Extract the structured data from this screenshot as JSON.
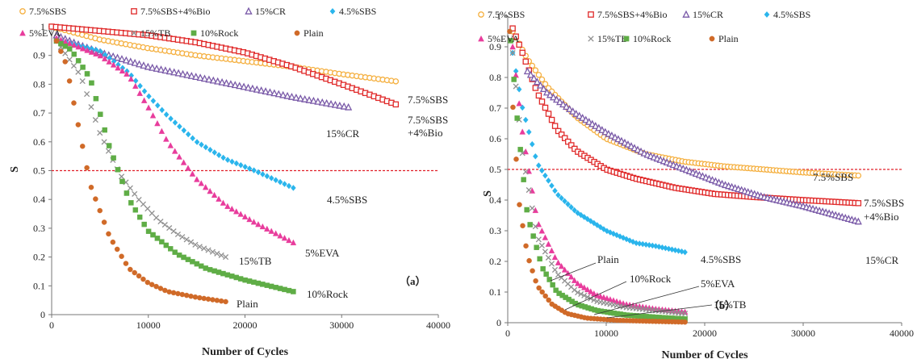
{
  "chart_data": [
    {
      "type": "scatter",
      "panel_label": "（a）",
      "xlabel": "Number of Cycles",
      "ylabel": "S",
      "xlim": [
        0,
        40000
      ],
      "ylim": [
        0,
        1
      ],
      "xticks": [
        "0",
        "10000",
        "20000",
        "30000",
        "40000"
      ],
      "yticks": [
        "0",
        "0.1",
        "0.2",
        "0.3",
        "0.4",
        "0.5",
        "0.6",
        "0.7",
        "0.8",
        "0.9",
        "1"
      ],
      "legend": [
        "7.5%SBS",
        "7.5%SBS+4%Bio",
        "15%CR",
        "4.5%SBS",
        "5%EVA",
        "15%TB",
        "10%Rock",
        "Plain"
      ],
      "legend_position": "top",
      "reference_line": {
        "y": 0.5,
        "color": "#e0202a",
        "style": "dashed"
      },
      "annotations": [
        "7.5%SBS",
        "7.5%SBS",
        "+4%Bio",
        "15%CR",
        "4.5%SBS",
        "5%EVA",
        "15%TB",
        "10%Rock",
        "Plain"
      ],
      "series": [
        {
          "name": "7.5%SBS",
          "marker": "circle-open",
          "color": "#f5b040",
          "x": [
            0,
            5000,
            10000,
            15000,
            20000,
            25000,
            30000,
            35600
          ],
          "y": [
            1.0,
            0.955,
            0.925,
            0.9,
            0.88,
            0.86,
            0.835,
            0.81
          ]
        },
        {
          "name": "7.5%SBS+4%Bio",
          "marker": "square-open",
          "color": "#e02a2a",
          "x": [
            0,
            5000,
            10000,
            15000,
            20000,
            25000,
            30000,
            35600
          ],
          "y": [
            1.0,
            0.985,
            0.97,
            0.945,
            0.91,
            0.86,
            0.8,
            0.73
          ]
        },
        {
          "name": "15%CR",
          "marker": "triangle-open",
          "color": "#7a5aa8",
          "x": [
            500,
            3000,
            6000,
            10000,
            15000,
            20000,
            25000,
            30700
          ],
          "y": [
            0.97,
            0.935,
            0.9,
            0.86,
            0.825,
            0.79,
            0.755,
            0.72
          ]
        },
        {
          "name": "4.5%SBS",
          "marker": "diamond",
          "color": "#2ab5ec",
          "x": [
            1000,
            5000,
            8000,
            10000,
            12000,
            15000,
            18000,
            21000,
            25000
          ],
          "y": [
            0.95,
            0.915,
            0.84,
            0.76,
            0.69,
            0.6,
            0.54,
            0.5,
            0.44
          ]
        },
        {
          "name": "5%EVA",
          "marker": "triangle",
          "color": "#e83c9c",
          "x": [
            500,
            5000,
            8000,
            10000,
            12000,
            15000,
            18000,
            21000,
            25000
          ],
          "y": [
            0.96,
            0.9,
            0.83,
            0.72,
            0.6,
            0.47,
            0.38,
            0.32,
            0.25
          ]
        },
        {
          "name": "15%TB",
          "marker": "cross",
          "color": "#909090",
          "x": [
            500,
            3000,
            5000,
            7000,
            9000,
            11000,
            13000,
            15000,
            18000
          ],
          "y": [
            0.95,
            0.83,
            0.63,
            0.49,
            0.4,
            0.33,
            0.28,
            0.24,
            0.2
          ]
        },
        {
          "name": "10%Rock",
          "marker": "square",
          "color": "#5fad46",
          "x": [
            500,
            2000,
            4000,
            6000,
            8000,
            10000,
            13000,
            16000,
            20000,
            25000
          ],
          "y": [
            0.95,
            0.92,
            0.82,
            0.58,
            0.4,
            0.29,
            0.21,
            0.16,
            0.12,
            0.08
          ]
        },
        {
          "name": "Plain",
          "marker": "circle",
          "color": "#d06a28",
          "x": [
            500,
            1500,
            2500,
            4000,
            6000,
            8000,
            10000,
            12000,
            15000,
            18000
          ],
          "y": [
            0.95,
            0.87,
            0.7,
            0.45,
            0.27,
            0.16,
            0.11,
            0.08,
            0.06,
            0.045
          ]
        }
      ]
    },
    {
      "type": "scatter",
      "panel_label": "（b）",
      "xlabel": "Number of Cycles",
      "ylabel": "S",
      "xlim": [
        0,
        40000
      ],
      "ylim": [
        0,
        1
      ],
      "xticks": [
        "0",
        "10000",
        "20000",
        "30000",
        "40000"
      ],
      "yticks": [
        "0",
        "0.1",
        "0.2",
        "0.3",
        "0.4",
        "0.5",
        "0.6",
        "0.7",
        "0.8",
        "0.9",
        "1"
      ],
      "legend": [
        "7.5%SBS",
        "7.5%SBS+4%Bio",
        "15%CR",
        "4.5%SBS",
        "5%EVA",
        "15%TB",
        "10%Rock",
        "Plain"
      ],
      "legend_position": "top",
      "reference_line": {
        "y": 0.5,
        "color": "#e0202a",
        "style": "dashed"
      },
      "annotations": [
        "7.5%SBS",
        "7.5%SBS",
        "+4%Bio",
        "15%CR",
        "4.5%SBS",
        "Plain",
        "10%Rock",
        "5%EVA",
        "15%TB"
      ],
      "series": [
        {
          "name": "7.5%SBS",
          "marker": "circle-open",
          "color": "#f5b040",
          "x": [
            500,
            2000,
            4000,
            7000,
            10000,
            14000,
            18000,
            22000,
            26000,
            30000,
            35600
          ],
          "y": [
            0.95,
            0.86,
            0.77,
            0.67,
            0.6,
            0.55,
            0.525,
            0.51,
            0.5,
            0.49,
            0.48
          ]
        },
        {
          "name": "7.5%SBS+4%Bio",
          "marker": "square-open",
          "color": "#e02a2a",
          "x": [
            500,
            1500,
            3000,
            5000,
            7000,
            10000,
            13000,
            17000,
            21000,
            25000,
            30000,
            35600
          ],
          "y": [
            0.96,
            0.88,
            0.75,
            0.63,
            0.56,
            0.5,
            0.47,
            0.44,
            0.42,
            0.41,
            0.4,
            0.39
          ]
        },
        {
          "name": "15%CR",
          "marker": "triangle-open",
          "color": "#7a5aa8",
          "x": [
            2000,
            4000,
            7000,
            10000,
            14000,
            18000,
            22000,
            26000,
            30000,
            35600
          ],
          "y": [
            0.82,
            0.75,
            0.68,
            0.62,
            0.55,
            0.5,
            0.45,
            0.41,
            0.38,
            0.33
          ]
        },
        {
          "name": "4.5%SBS",
          "marker": "diamond",
          "color": "#2ab5ec",
          "x": [
            500,
            1500,
            3000,
            5000,
            7000,
            10000,
            13000,
            15000,
            18000
          ],
          "y": [
            0.88,
            0.7,
            0.52,
            0.42,
            0.36,
            0.3,
            0.26,
            0.25,
            0.23
          ]
        },
        {
          "name": "5%EVA",
          "marker": "triangle",
          "color": "#e83c9c",
          "x": [
            500,
            1500,
            3000,
            5000,
            7000,
            9000,
            12000,
            15000,
            18000
          ],
          "y": [
            0.9,
            0.62,
            0.33,
            0.2,
            0.13,
            0.09,
            0.06,
            0.045,
            0.035
          ]
        },
        {
          "name": "15%TB",
          "marker": "cross",
          "color": "#909090",
          "x": [
            500,
            1500,
            3000,
            5000,
            7000,
            9000,
            12000,
            15000,
            18000
          ],
          "y": [
            0.88,
            0.55,
            0.28,
            0.16,
            0.1,
            0.07,
            0.05,
            0.04,
            0.03
          ]
        },
        {
          "name": "10%Rock",
          "marker": "square",
          "color": "#5fad46",
          "x": [
            300,
            1000,
            2000,
            3500,
            5000,
            7000,
            9000,
            12000,
            15000,
            18000
          ],
          "y": [
            0.92,
            0.65,
            0.35,
            0.18,
            0.1,
            0.06,
            0.04,
            0.025,
            0.018,
            0.012
          ]
        },
        {
          "name": "Plain",
          "marker": "circle",
          "color": "#d06a28",
          "x": [
            200,
            600,
            1200,
            2000,
            3000,
            4500,
            6000,
            8000,
            11000,
            14000,
            18000
          ],
          "y": [
            0.95,
            0.65,
            0.38,
            0.22,
            0.12,
            0.06,
            0.03,
            0.015,
            0.008,
            0.005,
            0.002
          ]
        }
      ]
    }
  ]
}
